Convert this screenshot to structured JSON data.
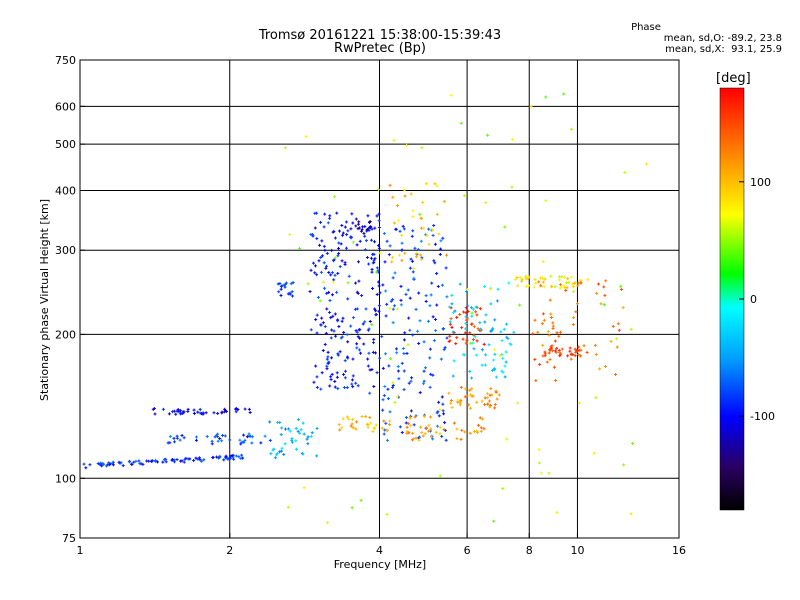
{
  "chart_data": {
    "type": "scatter",
    "title": "Tromsø 20161221 15:38:00-15:39:43",
    "subtitle": "RwPretec (Bp)",
    "xlabel": "Frequency [MHz]",
    "ylabel": "Stationary phase Virtual Height [km]",
    "x_scale": "log",
    "y_scale": "log",
    "xlim": [
      1,
      16
    ],
    "ylim": [
      75,
      750
    ],
    "x_ticks": [
      "1",
      "2",
      "4",
      "6",
      "8",
      "10",
      "16"
    ],
    "y_ticks": [
      "75",
      "100",
      "200",
      "300",
      "400",
      "500",
      "600",
      "750"
    ],
    "grid": true,
    "stats": {
      "heading": "Phase",
      "o_line": "mean, sd,O: -89.2, 23.8",
      "x_line": "mean, sd,X:  93.1, 25.9"
    },
    "colorbar": {
      "label": "[deg]",
      "ticks": [
        "100",
        "0",
        "-100"
      ],
      "range": [
        -180,
        180
      ],
      "colormap": "rainbow"
    },
    "clusters": [
      {
        "x": [
          1.0,
          2.15
        ],
        "y": [
          106,
          111
        ],
        "phase": -90,
        "n": 90,
        "trend": "rising"
      },
      {
        "x": [
          1.4,
          2.2
        ],
        "y": [
          136,
          140
        ],
        "phase": -105,
        "n": 45,
        "trend": "flat"
      },
      {
        "x": [
          1.5,
          2.5
        ],
        "y": [
          118,
          124
        ],
        "phase": -80,
        "n": 40,
        "trend": "flat"
      },
      {
        "x": [
          2.5,
          2.7
        ],
        "y": [
          240,
          260
        ],
        "phase": -90,
        "n": 18,
        "trend": "none"
      },
      {
        "x": [
          2.4,
          3.0
        ],
        "y": [
          110,
          135
        ],
        "phase": -40,
        "n": 40,
        "trend": "none"
      },
      {
        "x": [
          2.9,
          4.0
        ],
        "y": [
          150,
          360
        ],
        "phase": -95,
        "n": 230,
        "trend": "none"
      },
      {
        "x": [
          3.5,
          3.9
        ],
        "y": [
          325,
          345
        ],
        "phase": -120,
        "n": 20,
        "trend": "flat"
      },
      {
        "x": [
          3.3,
          4.2
        ],
        "y": [
          125,
          135
        ],
        "phase": 110,
        "n": 30,
        "trend": "none"
      },
      {
        "x": [
          4.0,
          5.5
        ],
        "y": [
          120,
          340
        ],
        "phase": -80,
        "n": 160,
        "trend": "none"
      },
      {
        "x": [
          4.2,
          5.5
        ],
        "y": [
          280,
          420
        ],
        "phase": 100,
        "n": 35,
        "trend": "none"
      },
      {
        "x": [
          4.5,
          6.5
        ],
        "y": [
          120,
          135
        ],
        "phase": 115,
        "n": 45,
        "trend": "none"
      },
      {
        "x": [
          5.5,
          7.0
        ],
        "y": [
          140,
          155
        ],
        "phase": 120,
        "n": 40,
        "trend": "none"
      },
      {
        "x": [
          5.5,
          6.5
        ],
        "y": [
          190,
          230
        ],
        "phase": 160,
        "n": 40,
        "trend": "none"
      },
      {
        "x": [
          5.5,
          7.5
        ],
        "y": [
          160,
          260
        ],
        "phase": -30,
        "n": 70,
        "trend": "none"
      },
      {
        "x": [
          7.5,
          10.5
        ],
        "y": [
          250,
          265
        ],
        "phase": 80,
        "n": 50,
        "trend": "flat"
      },
      {
        "x": [
          8.5,
          10.5
        ],
        "y": [
          180,
          190
        ],
        "phase": 150,
        "n": 35,
        "trend": "flat"
      },
      {
        "x": [
          8.0,
          12.5
        ],
        "y": [
          160,
          260
        ],
        "phase": 130,
        "n": 60,
        "trend": "none"
      },
      {
        "x": [
          2.5,
          14.0
        ],
        "y": [
          80,
          650
        ],
        "phase": 60,
        "n": 80,
        "trend": "none"
      }
    ]
  }
}
